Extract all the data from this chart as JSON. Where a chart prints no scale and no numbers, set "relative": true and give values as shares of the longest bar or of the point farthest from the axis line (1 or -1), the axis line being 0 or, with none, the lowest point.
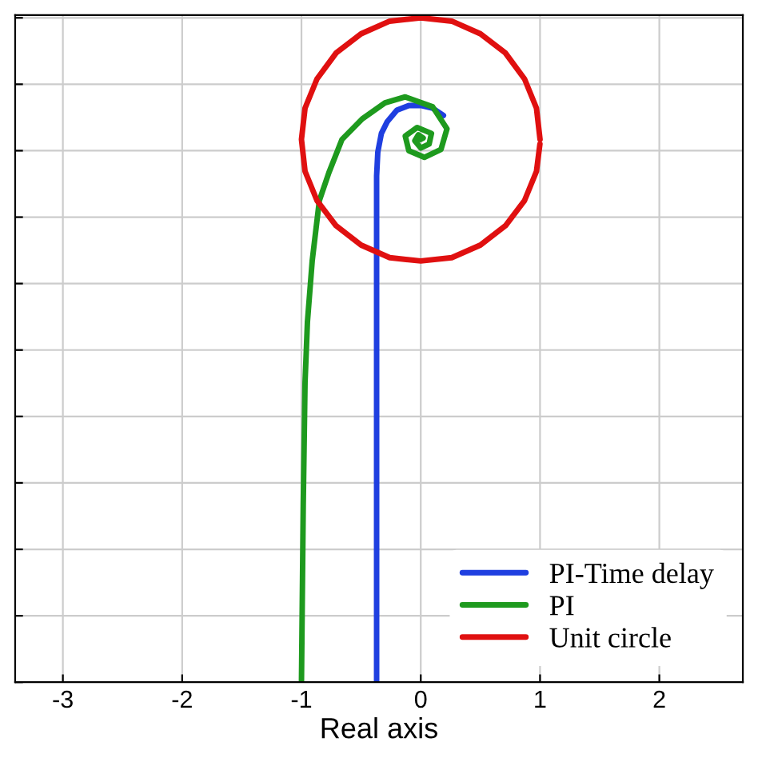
{
  "chart_data": {
    "type": "line",
    "xlabel": "Real axis",
    "xlim": [
      -3.4,
      2.7
    ],
    "relative": true,
    "xticks": [
      -3,
      -2,
      -1,
      0,
      1,
      2
    ],
    "tick_labels": "x",
    "grid": true,
    "legend": "bottom right",
    "marker": "none",
    "line_style": "solid",
    "series": [
      {
        "name": "PI-Time delay",
        "color": "#1f3fe0",
        "x": [
          -0.37,
          -0.37,
          -0.37,
          -0.37,
          -0.36,
          -0.33,
          -0.28,
          -0.2,
          -0.1,
          0,
          0.1,
          0.19
        ],
        "values": [
          0,
          0.451,
          0.634,
          0.762,
          0.798,
          0.826,
          0.844,
          0.861,
          0.868,
          0.868,
          0.864,
          0.853
        ]
      },
      {
        "name": "PI",
        "color": "#1e9a1e",
        "x": [
          -1.0,
          -0.985,
          -0.97,
          -0.95,
          -0.91,
          -0.85,
          -0.77,
          -0.66,
          -0.49,
          -0.3,
          -0.13,
          0.1,
          0.22,
          0.17,
          0.03,
          -0.1,
          -0.13,
          -0.03,
          0.09,
          0.07,
          0.0,
          -0.05,
          -0.02,
          0.02,
          0.0
        ],
        "values": [
          0,
          0.267,
          0.451,
          0.542,
          0.634,
          0.725,
          0.767,
          0.817,
          0.848,
          0.872,
          0.881,
          0.866,
          0.833,
          0.802,
          0.79,
          0.8,
          0.822,
          0.835,
          0.826,
          0.81,
          0.804,
          0.815,
          0.824,
          0.819,
          0.817
        ]
      },
      {
        "name": "Unit circle",
        "color": "#e01010",
        "x": [
          1,
          0.97,
          0.87,
          0.71,
          0.5,
          0.26,
          0,
          -0.26,
          -0.5,
          -0.71,
          -0.87,
          -0.97,
          -1,
          -0.97,
          -0.87,
          -0.71,
          -0.5,
          -0.26,
          0,
          0.26,
          0.5,
          0.71,
          0.87,
          0.97,
          0.999
        ],
        "values": [
          0.817,
          0.864,
          0.908,
          0.947,
          0.976,
          0.995,
          1,
          0.995,
          0.976,
          0.947,
          0.908,
          0.864,
          0.817,
          0.769,
          0.725,
          0.687,
          0.658,
          0.639,
          0.634,
          0.639,
          0.658,
          0.687,
          0.725,
          0.769,
          0.81
        ]
      }
    ]
  }
}
